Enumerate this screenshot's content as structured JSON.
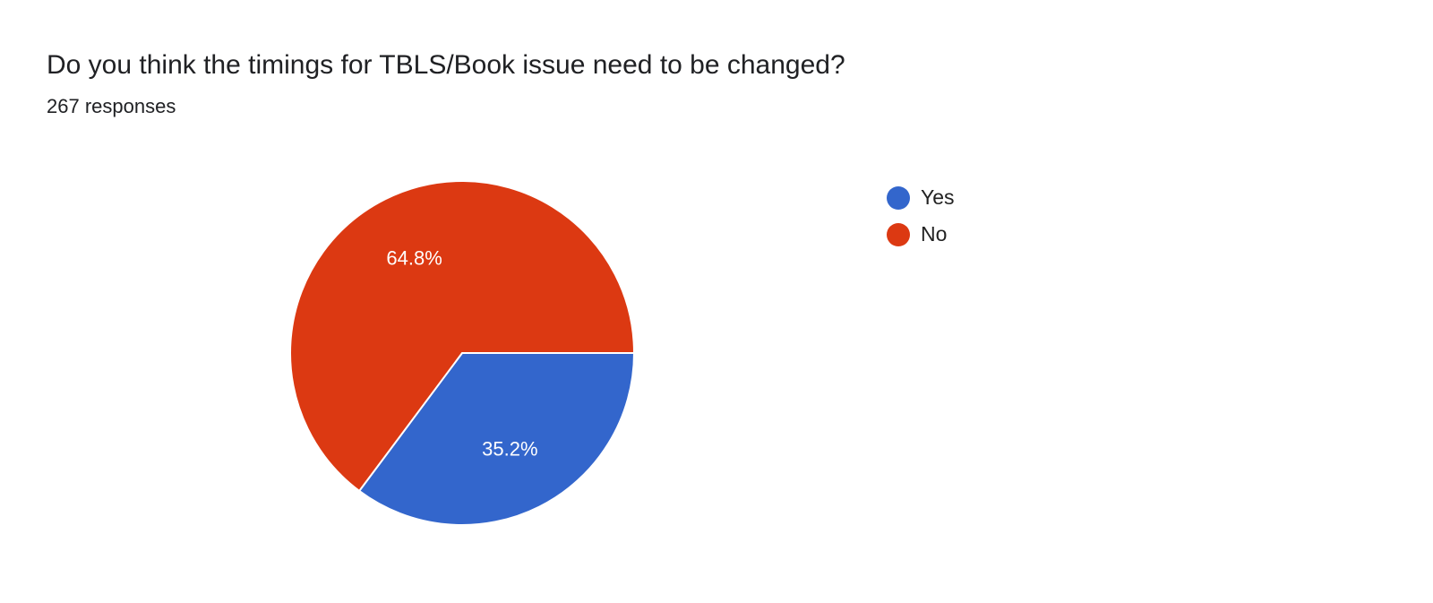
{
  "title": "Do you think the timings for TBLS/Book issue need to be changed?",
  "subtitle": "267 responses",
  "chart_data": {
    "type": "pie",
    "title": "Do you think the timings for TBLS/Book issue need to be changed?",
    "categories": [
      "Yes",
      "No"
    ],
    "values": [
      35.2,
      64.8
    ],
    "labels": [
      "35.2%",
      "64.8%"
    ],
    "colors": [
      "#3366cc",
      "#dc3912"
    ],
    "legend_position": "right",
    "start": "3 o'clock, clockwise"
  }
}
